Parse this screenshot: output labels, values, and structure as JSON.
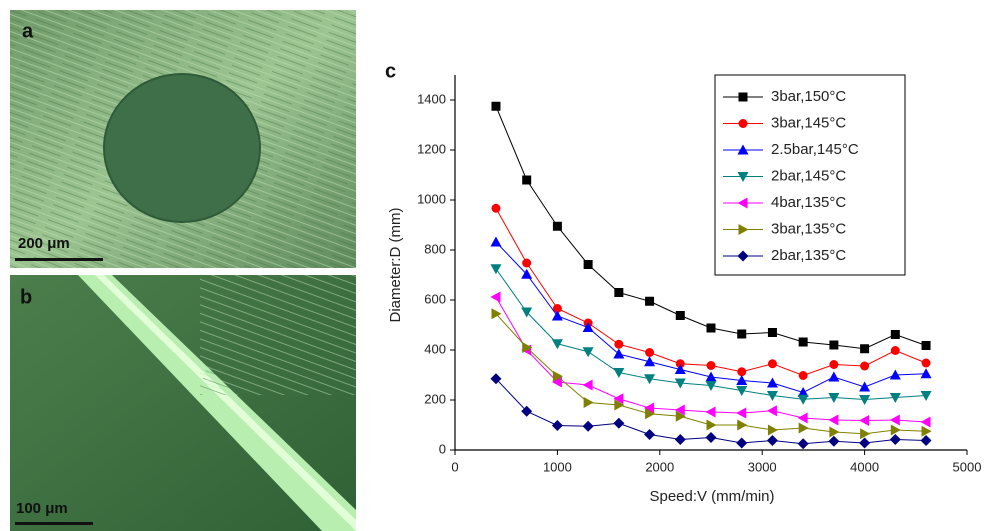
{
  "panels": [
    {
      "label": "a",
      "scale_bar": "200 μm"
    },
    {
      "label": "b",
      "scale_bar": "100 μm"
    }
  ],
  "chart_label": "c",
  "chart_data": {
    "type": "line",
    "x_label": "Speed:V (mm/min)",
    "y_label": "Diameter:D (mm)",
    "x": [
      400,
      700,
      1000,
      1300,
      1600,
      1900,
      2200,
      2500,
      2800,
      3100,
      3400,
      3700,
      4000,
      4300,
      4600
    ],
    "xlim": [
      0,
      5000
    ],
    "xticks": [
      0,
      1000,
      2000,
      3000,
      4000,
      5000
    ],
    "ylim": [
      0,
      1500
    ],
    "yticks": [
      0,
      200,
      400,
      600,
      800,
      1000,
      1200,
      1400
    ],
    "legend": "top-right",
    "series": [
      {
        "name": "3bar,150°C",
        "color": "#000000",
        "marker": "square",
        "values": [
          1375,
          1080,
          895,
          742,
          630,
          595,
          538,
          488,
          464,
          470,
          432,
          420,
          405,
          462,
          418
        ]
      },
      {
        "name": "3bar,145°C",
        "color": "#ff0000",
        "marker": "circle",
        "values": [
          967,
          748,
          566,
          508,
          423,
          390,
          345,
          338,
          313,
          345,
          298,
          342,
          336,
          398,
          348
        ]
      },
      {
        "name": "2.5bar,145°C",
        "color": "#0000ff",
        "marker": "triangle-up",
        "values": [
          832,
          703,
          536,
          490,
          384,
          353,
          322,
          292,
          278,
          268,
          230,
          292,
          252,
          300,
          305
        ]
      },
      {
        "name": "2bar,145°C",
        "color": "#008080",
        "marker": "triangle-down",
        "values": [
          725,
          552,
          425,
          393,
          310,
          285,
          268,
          258,
          238,
          218,
          203,
          210,
          202,
          210,
          218
        ]
      },
      {
        "name": "4bar,135°C",
        "color": "#ff00ff",
        "marker": "triangle-left",
        "values": [
          612,
          400,
          272,
          260,
          205,
          168,
          160,
          152,
          148,
          157,
          128,
          120,
          118,
          120,
          112
        ]
      },
      {
        "name": "3bar,135°C",
        "color": "#808000",
        "marker": "triangle-right",
        "values": [
          545,
          410,
          295,
          190,
          180,
          145,
          135,
          100,
          100,
          80,
          88,
          72,
          65,
          80,
          75
        ]
      },
      {
        "name": "2bar,135°C",
        "color": "#000080",
        "marker": "diamond",
        "values": [
          285,
          155,
          98,
          95,
          107,
          62,
          42,
          50,
          28,
          38,
          25,
          35,
          28,
          42,
          38
        ]
      }
    ]
  }
}
